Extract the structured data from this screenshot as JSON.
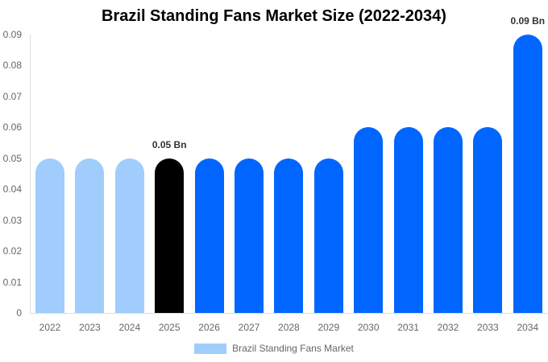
{
  "chart_data": {
    "type": "bar",
    "title": "Brazil Standing Fans Market Size (2022-2034)",
    "xlabel": "",
    "ylabel": "",
    "ylim": [
      0,
      0.09
    ],
    "yticks": [
      "0.09",
      "0.08",
      "0.07",
      "0.06",
      "0.05",
      "0.04",
      "0.03",
      "0.02",
      "0.01",
      "0"
    ],
    "categories": [
      "2022",
      "2023",
      "2024",
      "2025",
      "2026",
      "2027",
      "2028",
      "2029",
      "2030",
      "2031",
      "2032",
      "2033",
      "2034"
    ],
    "series": [
      {
        "name": "Brazil Standing Fans Market",
        "values": [
          0.05,
          0.05,
          0.05,
          0.05,
          0.05,
          0.05,
          0.05,
          0.05,
          0.06,
          0.06,
          0.06,
          0.06,
          0.09
        ]
      }
    ],
    "bar_colors": [
      "#a0cdfc",
      "#a0cdfc",
      "#a0cdfc",
      "#000000",
      "#0066ff",
      "#0066ff",
      "#0066ff",
      "#0066ff",
      "#0066ff",
      "#0066ff",
      "#0066ff",
      "#0066ff",
      "#0066ff"
    ],
    "annotations": [
      {
        "category": "2025",
        "text": "0.05 Bn"
      },
      {
        "category": "2034",
        "text": "0.09 Bn"
      }
    ],
    "grid": false,
    "legend_position": "bottom",
    "legend_color": "#a0cdfc"
  }
}
